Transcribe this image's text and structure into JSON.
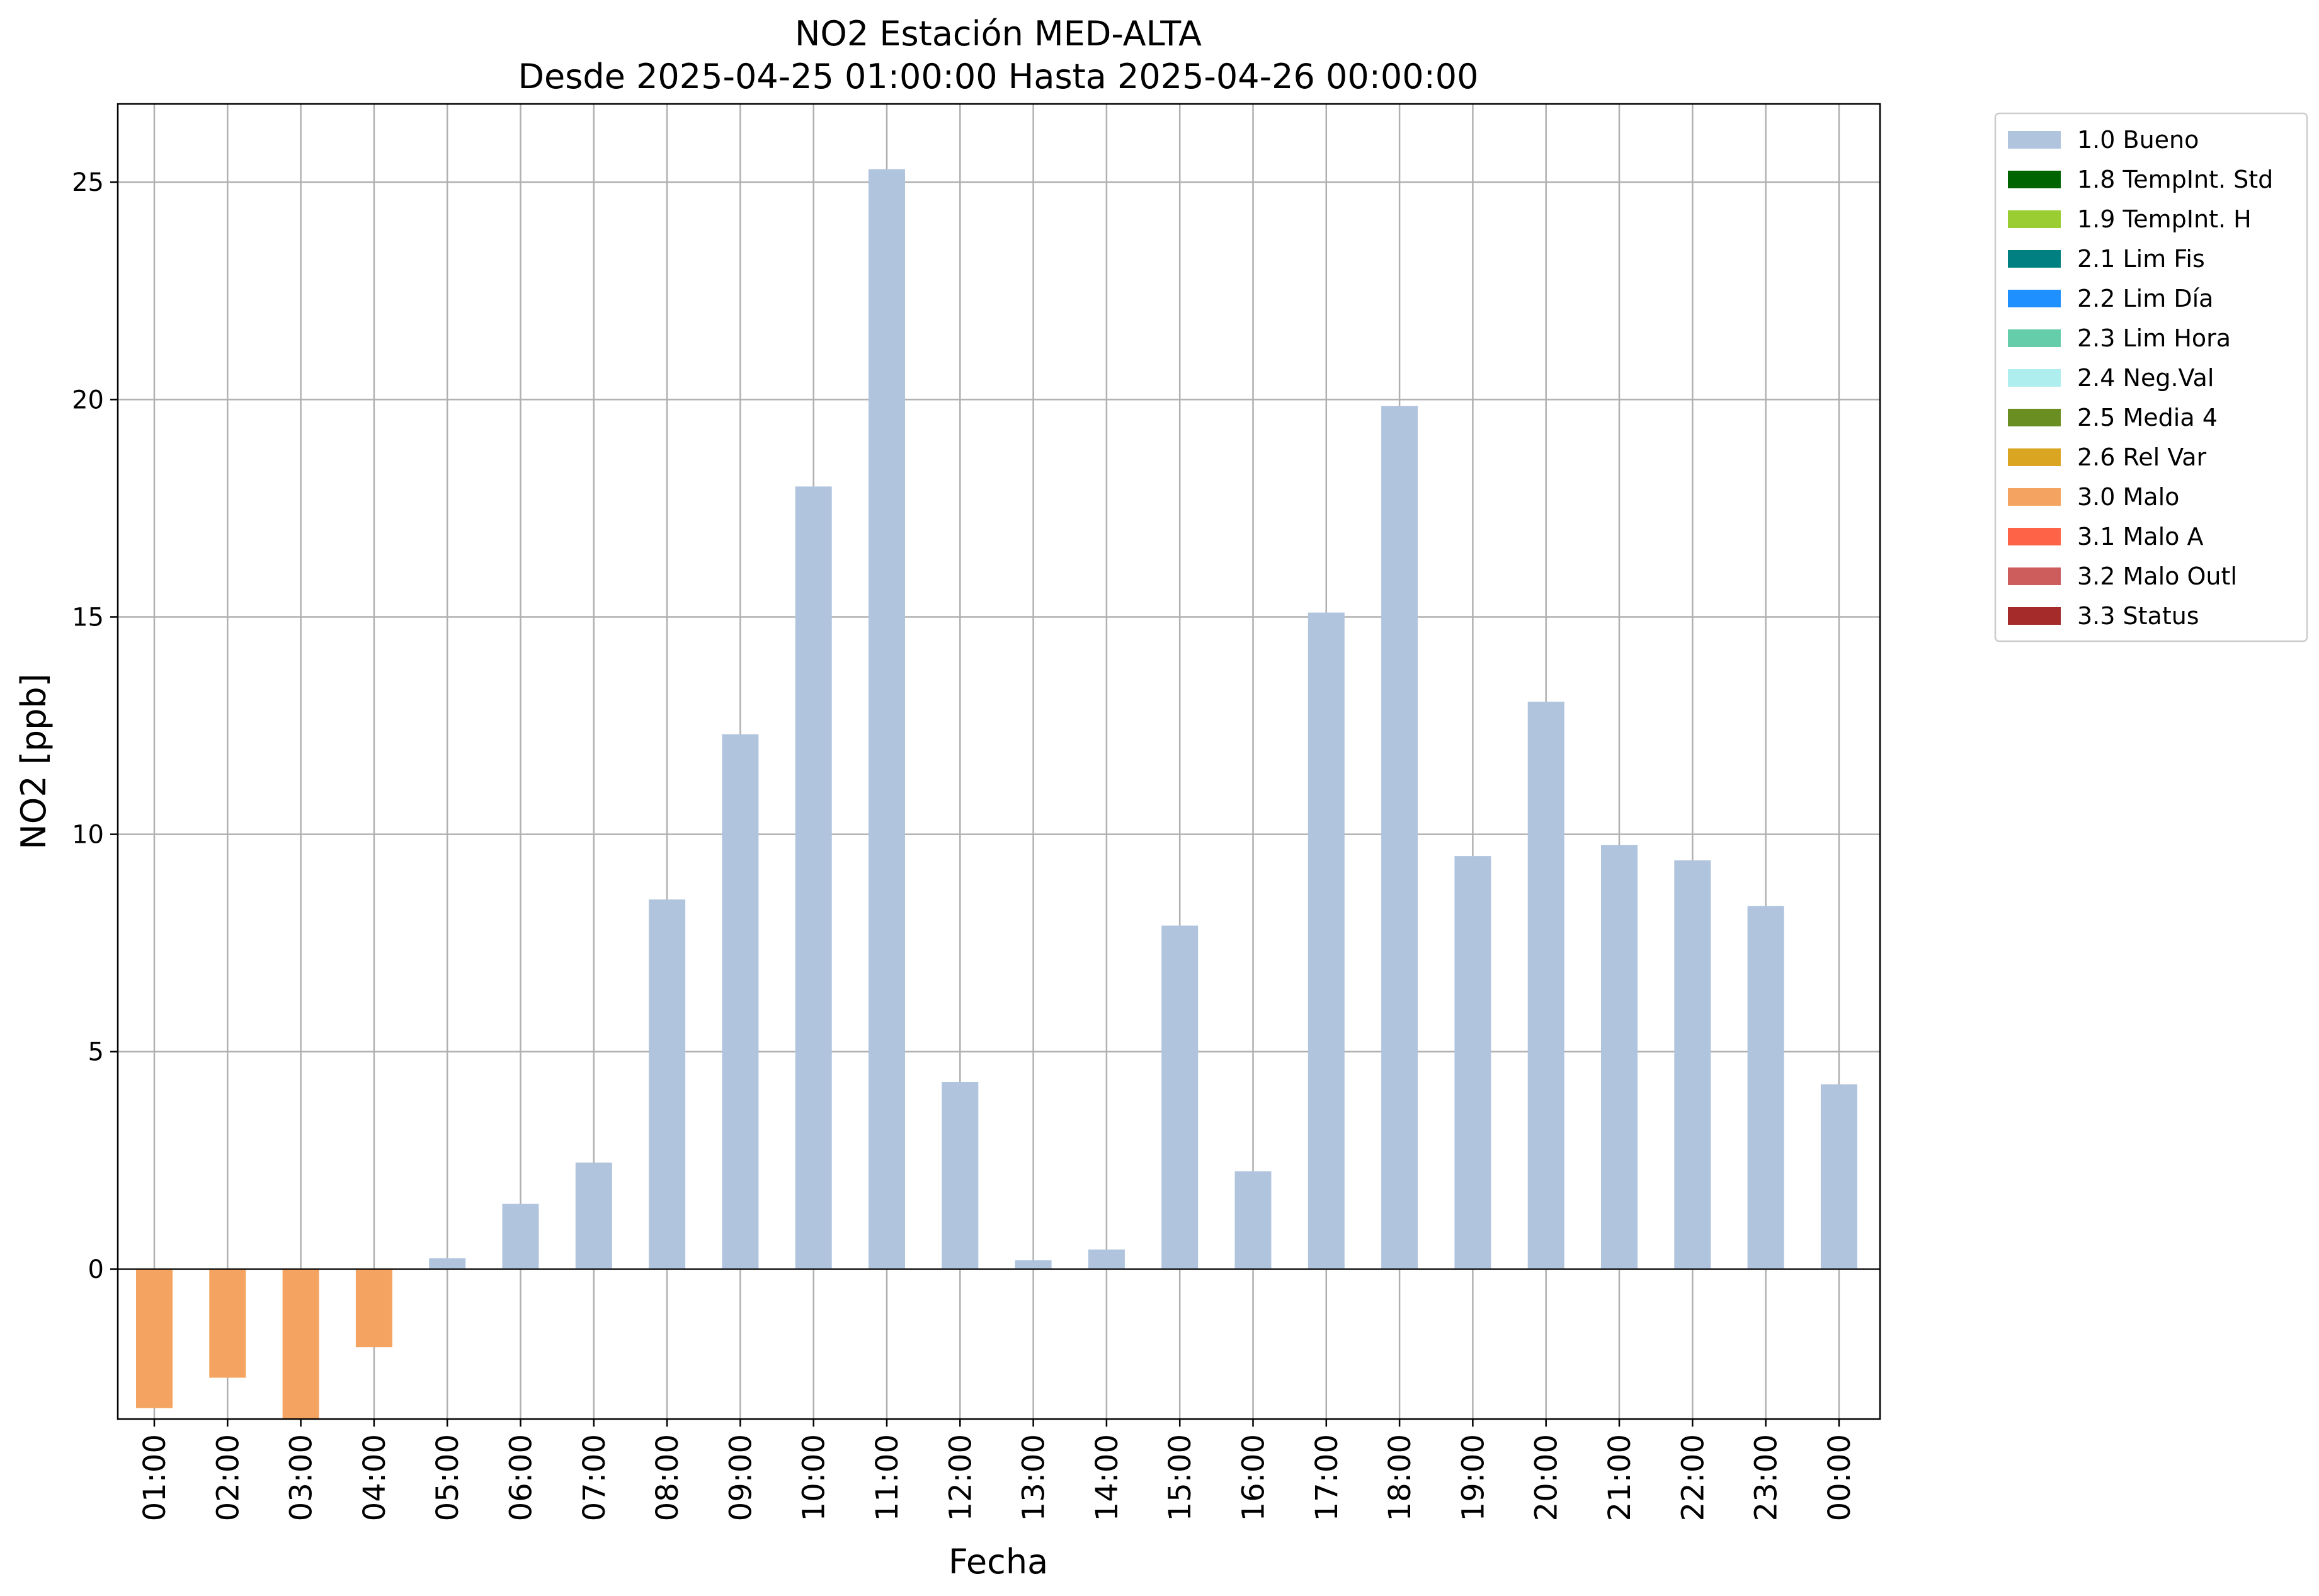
{
  "chart_data": {
    "type": "bar",
    "title": "NO2 Estación MED-ALTA",
    "subtitle": "Desde 2025-04-25 01:00:00 Hasta 2025-04-26 00:00:00",
    "xlabel": "Fecha",
    "ylabel": "NO2 [ppb]",
    "ylim": [
      -3.45,
      26.8
    ],
    "yticks": [
      0,
      5,
      10,
      15,
      20,
      25
    ],
    "grid": true,
    "legend_position": "outside-top-right",
    "categories": [
      "01:00",
      "02:00",
      "03:00",
      "04:00",
      "05:00",
      "06:00",
      "07:00",
      "08:00",
      "09:00",
      "10:00",
      "11:00",
      "12:00",
      "13:00",
      "14:00",
      "15:00",
      "16:00",
      "17:00",
      "18:00",
      "19:00",
      "20:00",
      "21:00",
      "22:00",
      "23:00",
      "00:00"
    ],
    "values": [
      -3.2,
      -2.5,
      -3.5,
      -1.8,
      0.25,
      1.5,
      2.45,
      8.5,
      12.3,
      18.0,
      25.3,
      4.3,
      0.2,
      0.45,
      7.9,
      2.25,
      15.1,
      19.85,
      9.5,
      13.05,
      9.75,
      9.4,
      8.35,
      4.25
    ],
    "flags": [
      "3.0 Malo",
      "3.0 Malo",
      "3.0 Malo",
      "3.0 Malo",
      "1.0 Bueno",
      "1.0 Bueno",
      "1.0 Bueno",
      "1.0 Bueno",
      "1.0 Bueno",
      "1.0 Bueno",
      "1.0 Bueno",
      "1.0 Bueno",
      "1.0 Bueno",
      "1.0 Bueno",
      "1.0 Bueno",
      "1.0 Bueno",
      "1.0 Bueno",
      "1.0 Bueno",
      "1.0 Bueno",
      "1.0 Bueno",
      "1.0 Bueno",
      "1.0 Bueno",
      "1.0 Bueno",
      "1.0 Bueno"
    ],
    "legend": [
      {
        "label": "1.0 Bueno",
        "color": "#b0c4de"
      },
      {
        "label": "1.8 TempInt. Std",
        "color": "#006400"
      },
      {
        "label": "1.9 TempInt. H",
        "color": "#9acd32"
      },
      {
        "label": "2.1 Lim Fis",
        "color": "#008080"
      },
      {
        "label": "2.2 Lim Día",
        "color": "#1e90ff"
      },
      {
        "label": "2.3 Lim Hora",
        "color": "#66cdaa"
      },
      {
        "label": "2.4 Neg.Val",
        "color": "#afeeee"
      },
      {
        "label": "2.5 Media 4",
        "color": "#6b8e23"
      },
      {
        "label": "2.6 Rel Var",
        "color": "#daa520"
      },
      {
        "label": "3.0 Malo",
        "color": "#f4a460"
      },
      {
        "label": "3.1 Malo A",
        "color": "#ff6347"
      },
      {
        "label": "3.2 Malo Outl",
        "color": "#cd5c5c"
      },
      {
        "label": "3.3 Status",
        "color": "#a52a2a"
      }
    ]
  }
}
